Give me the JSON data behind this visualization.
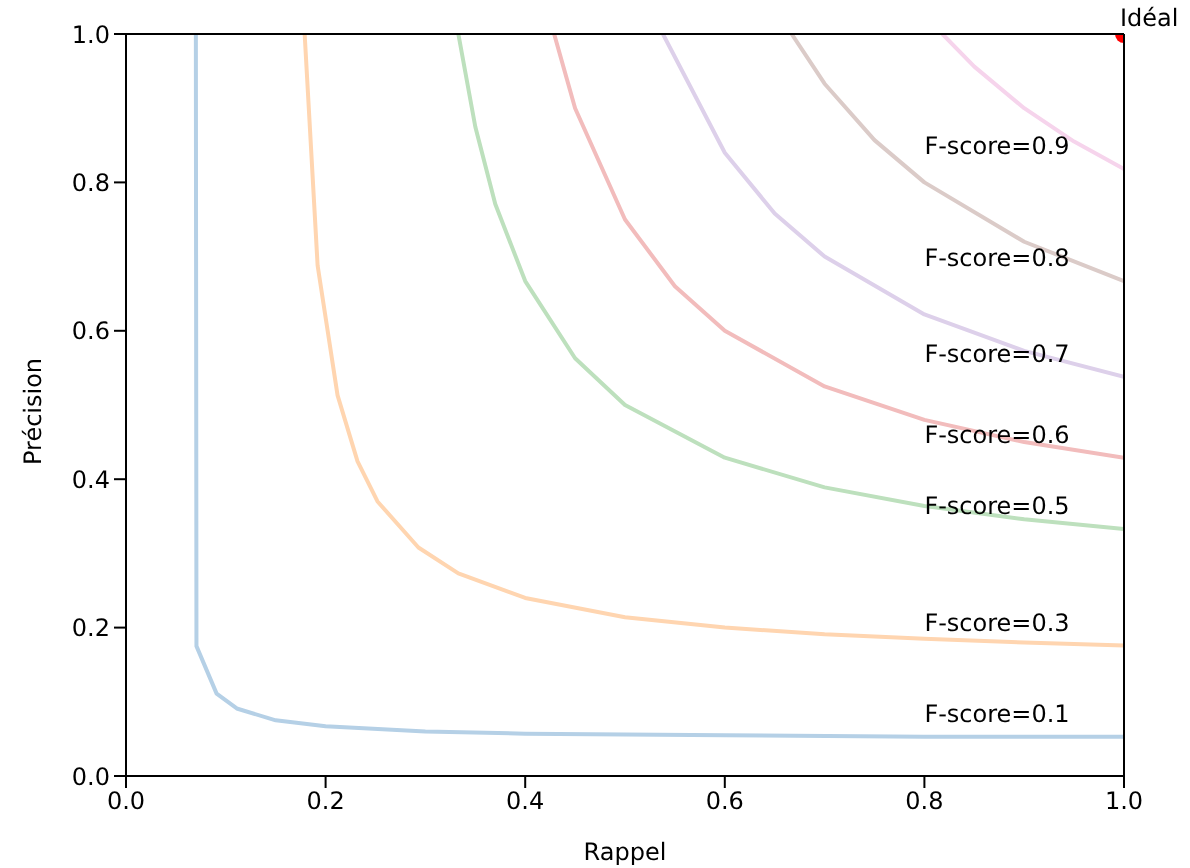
{
  "chart_data": {
    "type": "line",
    "xlabel": "Rappel",
    "ylabel": "Précision",
    "xlim": [
      0,
      1
    ],
    "ylim": [
      0,
      1
    ],
    "xticks": [
      {
        "value": 0,
        "label": "0.0"
      },
      {
        "value": 0.2,
        "label": "0.2"
      },
      {
        "value": 0.4,
        "label": "0.4"
      },
      {
        "value": 0.6,
        "label": "0.6"
      },
      {
        "value": 0.8,
        "label": "0.8"
      },
      {
        "value": 1,
        "label": "1.0"
      }
    ],
    "yticks": [
      {
        "value": 0,
        "label": "0.0"
      },
      {
        "value": 0.2,
        "label": "0.2"
      },
      {
        "value": 0.4,
        "label": "0.4"
      },
      {
        "value": 0.6,
        "label": "0.6"
      },
      {
        "value": 0.8,
        "label": "0.8"
      },
      {
        "value": 1,
        "label": "1.0"
      }
    ],
    "marker": "none",
    "line_style": "solid",
    "series": [
      {
        "color": "#b5d0e6",
        "x": [
          0.07,
          0.0706,
          0.0908,
          0.111,
          0.15,
          0.2,
          0.3,
          0.4,
          0.5,
          0.6,
          0.8,
          1
        ],
        "values": [
          1,
          0.175,
          0.111,
          0.091,
          0.075,
          0.067,
          0.06,
          0.057,
          0.056,
          0.055,
          0.053,
          0.053
        ]
      },
      {
        "color": "#ffd5b0",
        "x": [
          0.179,
          0.192,
          0.212,
          0.232,
          0.252,
          0.293,
          0.333,
          0.4,
          0.5,
          0.6,
          0.7,
          0.8,
          0.9,
          1
        ],
        "values": [
          1,
          0.688,
          0.513,
          0.424,
          0.37,
          0.308,
          0.273,
          0.24,
          0.214,
          0.2,
          0.191,
          0.185,
          0.18,
          0.176
        ]
      },
      {
        "color": "#bde0bd",
        "x": [
          0.333,
          0.35,
          0.37,
          0.4,
          0.45,
          0.5,
          0.6,
          0.7,
          0.8,
          0.9,
          1
        ],
        "values": [
          1,
          0.875,
          0.771,
          0.667,
          0.563,
          0.5,
          0.429,
          0.389,
          0.364,
          0.346,
          0.333
        ]
      },
      {
        "color": "#f2bcbc",
        "x": [
          0.429,
          0.45,
          0.5,
          0.55,
          0.6,
          0.7,
          0.8,
          0.9,
          1
        ],
        "values": [
          1,
          0.9,
          0.75,
          0.66,
          0.6,
          0.525,
          0.48,
          0.45,
          0.429
        ]
      },
      {
        "color": "#ddd0ea",
        "x": [
          0.538,
          0.6,
          0.65,
          0.7,
          0.8,
          0.9,
          1
        ],
        "values": [
          1,
          0.84,
          0.758,
          0.7,
          0.622,
          0.573,
          0.538
        ]
      },
      {
        "color": "#dbcbc8",
        "x": [
          0.667,
          0.7,
          0.75,
          0.8,
          0.9,
          1
        ],
        "values": [
          1,
          0.933,
          0.857,
          0.8,
          0.72,
          0.667
        ]
      },
      {
        "color": "#f6d4ec",
        "x": [
          0.818,
          0.85,
          0.9,
          0.95,
          1
        ],
        "values": [
          1,
          0.956,
          0.9,
          0.855,
          0.818
        ]
      },
      {
        "type": "scatter",
        "name": "Idéal",
        "color": "#ff0000",
        "marker": "circle",
        "x": [
          1
        ],
        "values": [
          1
        ]
      }
    ],
    "annotations": [
      "F-score=0.1",
      "F-score=0.3",
      "F-score=0.5",
      "F-score=0.6",
      "F-score=0.7",
      "F-score=0.8",
      "F-score=0.9"
    ]
  }
}
